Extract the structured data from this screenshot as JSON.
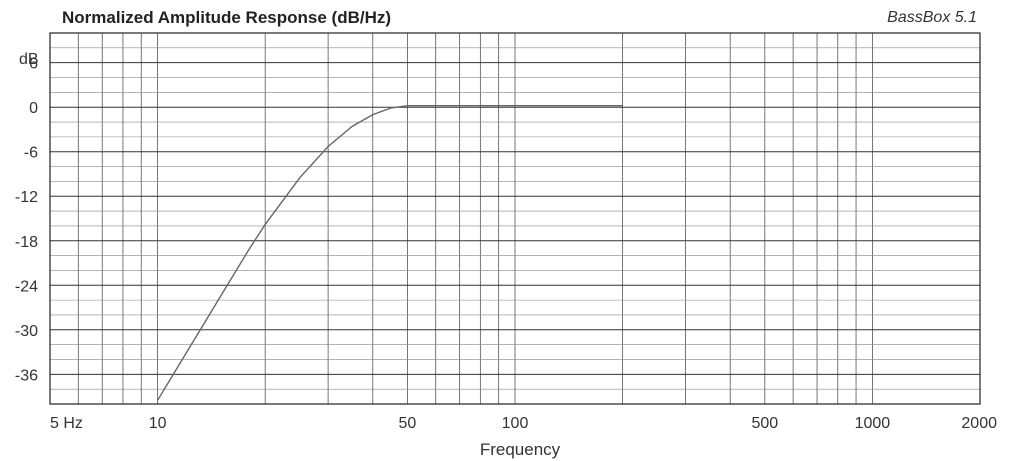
{
  "header": {
    "title": "Normalized Amplitude Response (dB/Hz)",
    "brand": "BassBox 5.1"
  },
  "chart_data": {
    "type": "line",
    "title": "Normalized Amplitude Response (dB/Hz)",
    "xlabel": "Frequency",
    "ylabel": "dB",
    "x_scale": "log",
    "xlim": [
      5,
      2000
    ],
    "ylim": [
      -40,
      10
    ],
    "grid": true,
    "x_ticks": [
      {
        "value": 5,
        "label": "5  Hz"
      },
      {
        "value": 10,
        "label": "10"
      },
      {
        "value": 50,
        "label": "50"
      },
      {
        "value": 100,
        "label": "100"
      },
      {
        "value": 500,
        "label": "500"
      },
      {
        "value": 1000,
        "label": "1000"
      },
      {
        "value": 2000,
        "label": "2000"
      }
    ],
    "y_ticks": [
      {
        "value": 6,
        "label": "6"
      },
      {
        "value": 0,
        "label": "0"
      },
      {
        "value": -6,
        "label": "-6"
      },
      {
        "value": -12,
        "label": "-12"
      },
      {
        "value": -18,
        "label": "-18"
      },
      {
        "value": -24,
        "label": "-24"
      },
      {
        "value": -30,
        "label": "-30"
      },
      {
        "value": -36,
        "label": "-36"
      }
    ],
    "series": [
      {
        "color": "#666666",
        "x": [
          10,
          12,
          15,
          18,
          20,
          25,
          30,
          35,
          40,
          45,
          50,
          60,
          70,
          100,
          150,
          200
        ],
        "y": [
          -39.5,
          -33.2,
          -25.5,
          -19.2,
          -15.8,
          -9.5,
          -5.3,
          -2.6,
          -1.0,
          -0.1,
          0.2,
          0.2,
          0.2,
          0.2,
          0.2,
          0.2
        ]
      }
    ]
  }
}
